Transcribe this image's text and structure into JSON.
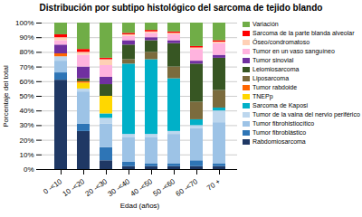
{
  "chart_data": {
    "type": "bar",
    "stacked": true,
    "title": "Distribución por subtipo histológico del sarcoma de tejido blando",
    "xlabel": "Edad (años)",
    "ylabel": "Porcentaje del total",
    "categories": [
      "0 -<10",
      "10 -<20",
      "20 -<30",
      "30 -<40",
      "40 -<50",
      "50 -<60",
      "60 -<70",
      "70 +"
    ],
    "series": [
      {
        "name": "Rabdomiosarcoma",
        "color": "#1F3864",
        "values": [
          61,
          26,
          6,
          2,
          2,
          2,
          2,
          2
        ]
      },
      {
        "name": "Tumor fibroblástico",
        "color": "#2E75B6",
        "values": [
          5,
          5,
          9,
          3,
          2,
          2,
          4,
          2
        ]
      },
      {
        "name": "Tumor fibrohistiocítico",
        "color": "#9DC3E6",
        "values": [
          8,
          22,
          16,
          17,
          18,
          20,
          22,
          28
        ]
      },
      {
        "name": "Tumor de la vaina del nervio periférico",
        "color": "#BDD7EE",
        "values": [
          3,
          2,
          4,
          2,
          2,
          2,
          2,
          8
        ]
      },
      {
        "name": "Sarcoma de Kaposi",
        "color": "#00B0C8",
        "values": [
          0,
          0,
          3,
          48,
          51,
          36,
          4,
          2
        ]
      },
      {
        "name": "TNEPp",
        "color": "#FFD700",
        "values": [
          0,
          4,
          12,
          0,
          0,
          0,
          0,
          0
        ]
      },
      {
        "name": "Tumor rabdoide",
        "color": "#FF6600",
        "values": [
          2,
          1,
          0,
          0,
          0,
          0,
          0,
          0
        ]
      },
      {
        "name": "Liposarcoma",
        "color": "#7B6B3D",
        "values": [
          0,
          0,
          0,
          3,
          5,
          8,
          12,
          12
        ]
      },
      {
        "name": "Leiomiosarcoma",
        "color": "#375623",
        "values": [
          0,
          2,
          8,
          10,
          8,
          16,
          26,
          22
        ]
      },
      {
        "name": "Tumor sinovial",
        "color": "#7030A0",
        "values": [
          6,
          8,
          5,
          3,
          2,
          2,
          2,
          2
        ]
      },
      {
        "name": "Tumor en un vaso sanguíneo",
        "color": "#FFB3DE",
        "values": [
          3,
          8,
          8,
          3,
          3,
          4,
          8,
          8
        ]
      },
      {
        "name": "Óseo/condromatoso",
        "color": "#FFD0B5",
        "values": [
          2,
          2,
          4,
          1,
          1,
          1,
          1,
          1
        ]
      },
      {
        "name": "Sarcoma de la parte blanda alveolar",
        "color": "#FF0000",
        "values": [
          2,
          2,
          1,
          1,
          1,
          1,
          1,
          1
        ]
      },
      {
        "name": "Variación",
        "color": "#70AD47",
        "values": [
          8,
          18,
          24,
          7,
          5,
          6,
          16,
          12
        ]
      }
    ],
    "ylim": [
      0,
      100
    ],
    "yticks": [
      {
        "value": 0,
        "label": "0%"
      },
      {
        "value": 10,
        "label": "10%"
      },
      {
        "value": 20,
        "label": "20%"
      },
      {
        "value": 30,
        "label": "30%"
      },
      {
        "value": 40,
        "label": "40%"
      },
      {
        "value": 50,
        "label": "50%"
      },
      {
        "value": 60,
        "label": "60%"
      },
      {
        "value": 70,
        "label": "70%"
      },
      {
        "value": 80,
        "label": "80%"
      },
      {
        "value": 90,
        "label": "90%"
      },
      {
        "value": 100,
        "label": "100%"
      }
    ],
    "grid": true,
    "legend": "right"
  }
}
